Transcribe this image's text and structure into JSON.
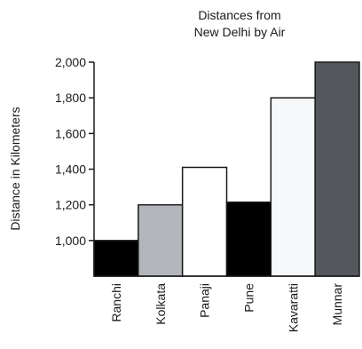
{
  "chart_data": {
    "type": "bar",
    "title_lines": [
      "Distances from",
      "New Delhi by Air"
    ],
    "ylabel": "Distance in Kilometers",
    "xlabel": "",
    "categories": [
      "Ranchi",
      "Kolkata",
      "Panaji",
      "Pune",
      "Kavaratti",
      "Munnar"
    ],
    "values": [
      1000,
      1200,
      1410,
      1215,
      1800,
      2000
    ],
    "bar_colors": [
      "#000000",
      "#b3b6ba",
      "#ffffff",
      "#000000",
      "#f7f8fa",
      "#54585c"
    ],
    "ylim": [
      800,
      2000
    ],
    "yticks": [
      1000,
      1200,
      1400,
      1600,
      1800,
      2000
    ],
    "ytick_labels": [
      "1,000",
      "1,200",
      "1,400",
      "1,600",
      "1,800",
      "2,000"
    ],
    "grid": false,
    "legend": "none"
  }
}
